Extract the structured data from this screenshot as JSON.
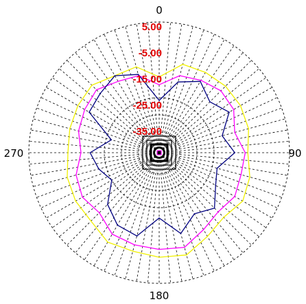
{
  "chart_data": {
    "type": "polar-line",
    "angle_labels": [
      {
        "angle": 0,
        "text": "0"
      },
      {
        "angle": 90,
        "text": "90"
      },
      {
        "angle": 180,
        "text": "180"
      },
      {
        "angle": 270,
        "text": "270"
      }
    ],
    "radial_range": [
      -45,
      5
    ],
    "radial_rings": [
      5,
      -5,
      -15,
      -25,
      -35
    ],
    "ring_labels": [
      "5.00",
      "-5.00",
      "-15.00",
      "-25.00",
      "-35.00"
    ],
    "grid": {
      "spokes_step_deg": 5,
      "style": "dashed"
    },
    "series": [
      {
        "color": "#f0f000",
        "theta_deg": [
          0,
          15,
          30,
          45,
          60,
          75,
          90,
          105,
          120,
          135,
          150,
          165,
          180,
          195,
          210,
          225,
          240,
          255,
          270,
          285,
          300,
          315,
          330,
          345
        ],
        "r": [
          -16.0,
          -10.0,
          -9.5,
          -9.0,
          -9.0,
          -9.5,
          -11.0,
          -9.0,
          -8.0,
          -10.0,
          -8.0,
          -4.5,
          -5.0,
          -6.0,
          -5.5,
          -8.0,
          -8.0,
          -8.5,
          -10.0,
          -9.5,
          -9.0,
          -8.5,
          -11.0,
          -11.0
        ]
      },
      {
        "color": "#ff00ff",
        "theta_deg": [
          0,
          15,
          30,
          45,
          60,
          75,
          90,
          105,
          120,
          135,
          150,
          165,
          180,
          195,
          210,
          225,
          240,
          255,
          270,
          285,
          300,
          315,
          330,
          345
        ],
        "r": [
          -19.0,
          -14.5,
          -13.0,
          -11.5,
          -12.0,
          -15.0,
          -12.0,
          -12.5,
          -11.5,
          -13.0,
          -11.0,
          -7.5,
          -8.0,
          -8.5,
          -9.0,
          -12.5,
          -11.0,
          -12.0,
          -15.0,
          -13.0,
          -12.0,
          -11.0,
          -13.5,
          -14.5
        ]
      },
      {
        "color": "#000080",
        "theta_deg": [
          0,
          15,
          30,
          45,
          60,
          75,
          90,
          105,
          120,
          135,
          150,
          165,
          180,
          195,
          210,
          225,
          240,
          255,
          270,
          285,
          300,
          315,
          330,
          345
        ],
        "r": [
          -25.0,
          -17.0,
          -13.5,
          -17.5,
          -14.0,
          -20.0,
          -16.0,
          -22.0,
          -20.0,
          -15.0,
          -18.0,
          -13.0,
          -20.0,
          -12.0,
          -13.0,
          -17.0,
          -24.0,
          -21.0,
          -18.5,
          -26.0,
          -14.0,
          -13.0,
          -11.0,
          -14.0
        ]
      }
    ]
  }
}
